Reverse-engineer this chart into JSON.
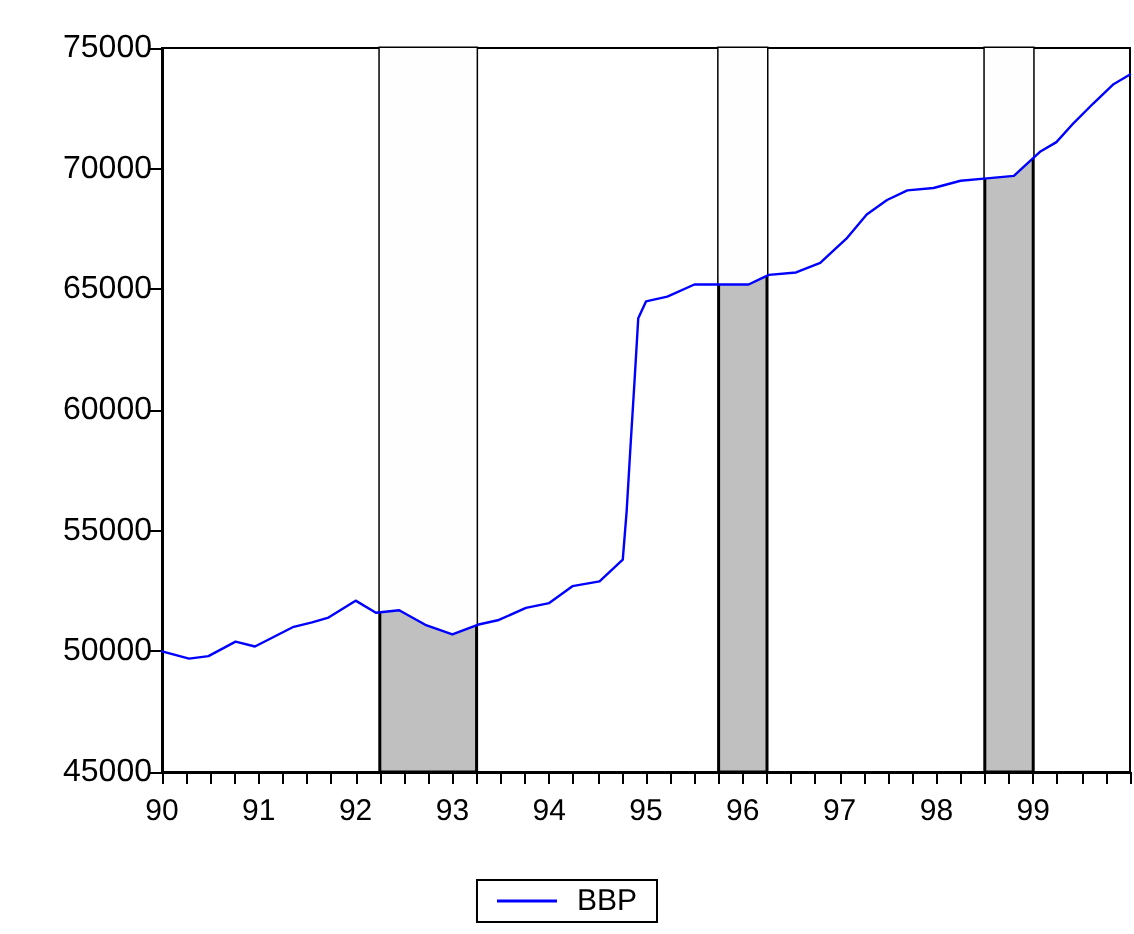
{
  "chart_data": {
    "type": "line",
    "legend": "bottom",
    "grid": false,
    "marker": "none",
    "line_style": "solid",
    "xlim": [
      90,
      100
    ],
    "ylim": [
      45000,
      75000
    ],
    "xticks": [
      90,
      91,
      92,
      93,
      94,
      95,
      96,
      97,
      98,
      99
    ],
    "yticks": [
      45000,
      50000,
      55000,
      60000,
      65000,
      70000,
      75000
    ],
    "x": [
      90.0,
      90.28,
      90.48,
      90.76,
      90.96,
      91.35,
      91.55,
      91.72,
      92.0,
      92.21,
      92.45,
      92.72,
      93.0,
      93.26,
      93.48,
      93.76,
      94.0,
      94.24,
      94.52,
      94.76,
      94.8,
      94.84,
      94.88,
      94.92,
      95.0,
      95.22,
      95.5,
      95.78,
      96.06,
      96.27,
      96.55,
      96.8,
      97.07,
      97.28,
      97.49,
      97.7,
      97.97,
      98.25,
      98.52,
      98.8,
      99.07,
      99.24,
      99.42,
      99.62,
      99.83,
      100.0
    ],
    "series": [
      {
        "name": "BBP",
        "color": "#0000ff",
        "values": [
          50000,
          49700,
          49800,
          50400,
          50200,
          51000,
          51200,
          51400,
          52100,
          51600,
          51700,
          51100,
          50700,
          51100,
          51300,
          51800,
          52000,
          52700,
          52900,
          53800,
          55800,
          58500,
          61100,
          63800,
          64500,
          64700,
          65200,
          65200,
          65200,
          65600,
          65700,
          66100,
          67100,
          68100,
          68700,
          69100,
          69200,
          69500,
          69600,
          69700,
          70700,
          71100,
          71900,
          72700,
          73500,
          73900
        ]
      }
    ],
    "bands": [
      {
        "axis": "x",
        "from": 92.25,
        "to": 93.25,
        "color": "#c0c0c0"
      },
      {
        "axis": "x",
        "from": 95.75,
        "to": 96.25,
        "color": "#c0c0c0"
      },
      {
        "axis": "x",
        "from": 98.5,
        "to": 99.0,
        "color": "#c0c0c0"
      }
    ]
  }
}
